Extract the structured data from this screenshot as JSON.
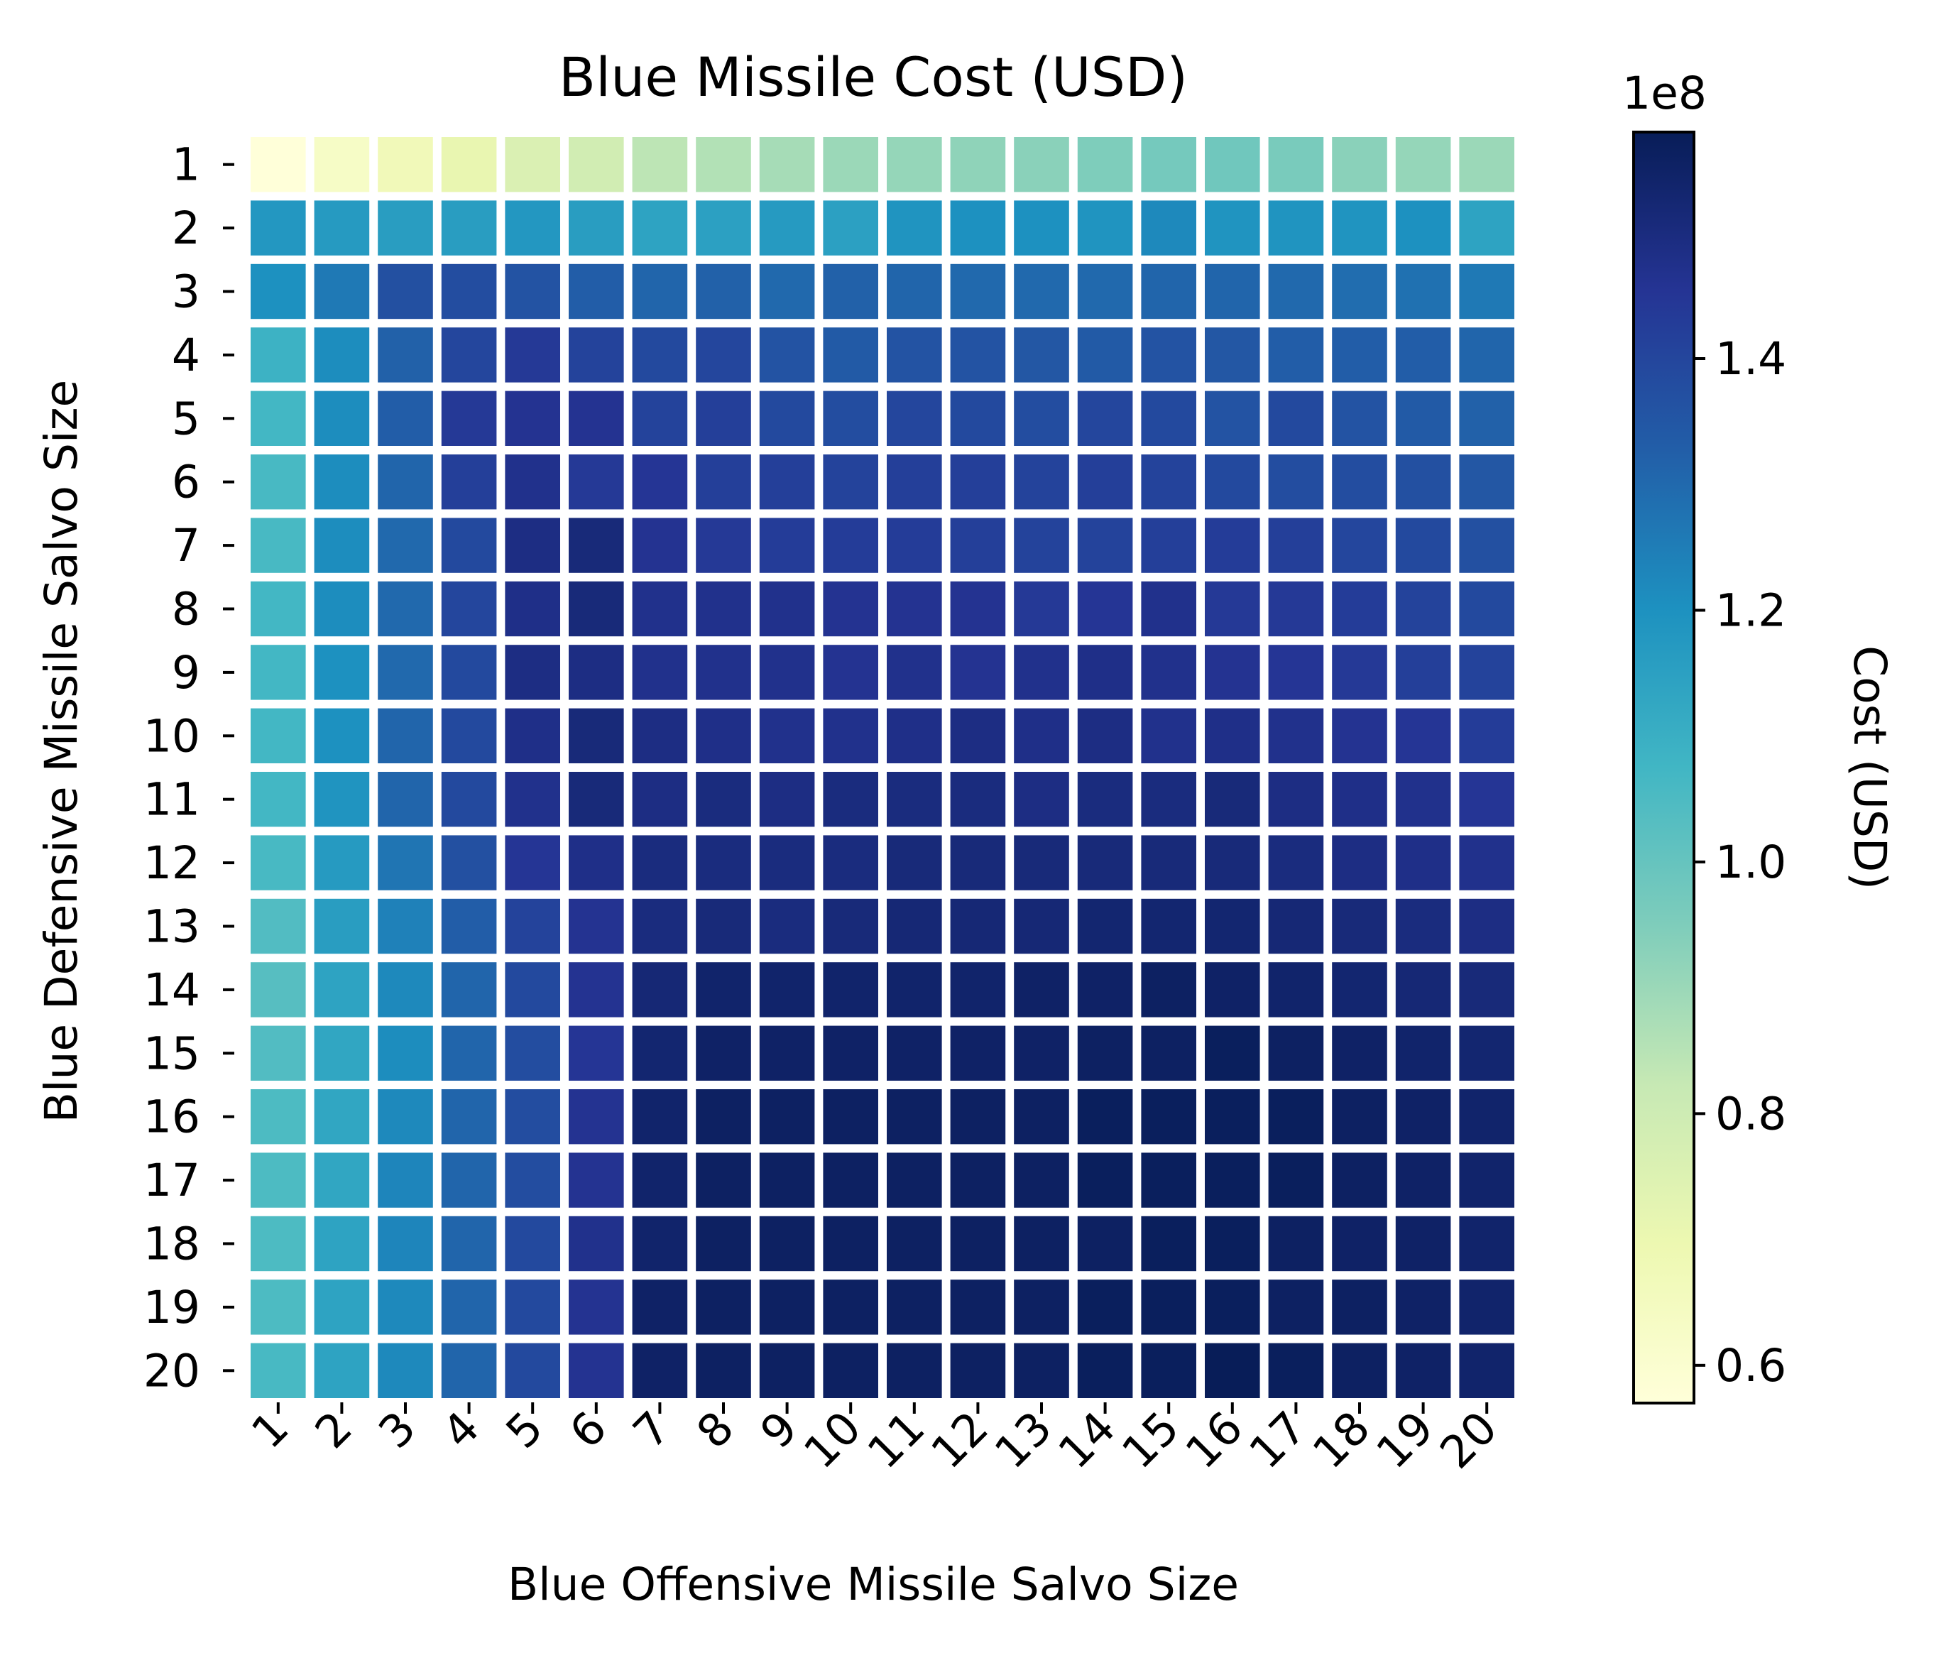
{
  "chart_data": {
    "type": "heatmap",
    "title": "Blue Missile Cost (USD)",
    "xlabel": "Blue Offensive Missile Salvo Size",
    "ylabel": "Blue Defensive Missile Salvo Size",
    "x_categories": [
      "1",
      "2",
      "3",
      "4",
      "5",
      "6",
      "7",
      "8",
      "9",
      "10",
      "11",
      "12",
      "13",
      "14",
      "15",
      "16",
      "17",
      "18",
      "19",
      "20"
    ],
    "y_categories": [
      "1",
      "2",
      "3",
      "4",
      "5",
      "6",
      "7",
      "8",
      "9",
      "10",
      "11",
      "12",
      "13",
      "14",
      "15",
      "16",
      "17",
      "18",
      "19",
      "20"
    ],
    "colorbar": {
      "label": "Cost (USD)",
      "offset_label": "1e8",
      "vmin": 0.57,
      "vmax": 1.58,
      "ticks": [
        "0.6",
        "0.8",
        "1.0",
        "1.2",
        "1.4"
      ],
      "tick_values": [
        0.6,
        0.8,
        1.0,
        1.2,
        1.4
      ],
      "colormap": "YlGnBu"
    },
    "values_units": "1e8 USD",
    "values": [
      [
        0.57,
        0.63,
        0.67,
        0.71,
        0.76,
        0.79,
        0.84,
        0.86,
        0.88,
        0.9,
        0.91,
        0.92,
        0.93,
        0.95,
        0.97,
        0.98,
        0.96,
        0.93,
        0.91,
        0.9
      ],
      [
        1.18,
        1.17,
        1.16,
        1.16,
        1.18,
        1.16,
        1.14,
        1.15,
        1.17,
        1.15,
        1.19,
        1.2,
        1.2,
        1.19,
        1.22,
        1.19,
        1.19,
        1.19,
        1.2,
        1.14
      ],
      [
        1.2,
        1.26,
        1.37,
        1.38,
        1.36,
        1.33,
        1.31,
        1.32,
        1.3,
        1.32,
        1.31,
        1.3,
        1.3,
        1.3,
        1.31,
        1.31,
        1.3,
        1.29,
        1.28,
        1.26
      ],
      [
        1.09,
        1.21,
        1.32,
        1.4,
        1.44,
        1.41,
        1.39,
        1.4,
        1.36,
        1.34,
        1.36,
        1.36,
        1.35,
        1.34,
        1.36,
        1.35,
        1.33,
        1.33,
        1.33,
        1.31
      ],
      [
        1.07,
        1.21,
        1.33,
        1.44,
        1.46,
        1.46,
        1.41,
        1.42,
        1.39,
        1.38,
        1.4,
        1.39,
        1.38,
        1.4,
        1.39,
        1.36,
        1.39,
        1.36,
        1.34,
        1.32
      ],
      [
        1.06,
        1.21,
        1.31,
        1.42,
        1.47,
        1.44,
        1.45,
        1.42,
        1.42,
        1.41,
        1.42,
        1.42,
        1.41,
        1.42,
        1.41,
        1.39,
        1.38,
        1.38,
        1.37,
        1.35
      ],
      [
        1.06,
        1.21,
        1.3,
        1.39,
        1.49,
        1.51,
        1.46,
        1.44,
        1.43,
        1.43,
        1.43,
        1.42,
        1.41,
        1.41,
        1.42,
        1.43,
        1.42,
        1.4,
        1.39,
        1.37
      ],
      [
        1.07,
        1.21,
        1.3,
        1.4,
        1.48,
        1.51,
        1.47,
        1.47,
        1.47,
        1.46,
        1.46,
        1.46,
        1.44,
        1.45,
        1.47,
        1.44,
        1.44,
        1.43,
        1.41,
        1.39
      ],
      [
        1.07,
        1.2,
        1.3,
        1.39,
        1.49,
        1.49,
        1.47,
        1.47,
        1.47,
        1.46,
        1.47,
        1.46,
        1.47,
        1.48,
        1.47,
        1.46,
        1.45,
        1.44,
        1.42,
        1.41
      ],
      [
        1.07,
        1.2,
        1.31,
        1.39,
        1.48,
        1.51,
        1.49,
        1.48,
        1.47,
        1.47,
        1.48,
        1.49,
        1.48,
        1.49,
        1.47,
        1.48,
        1.47,
        1.46,
        1.45,
        1.43
      ],
      [
        1.07,
        1.19,
        1.31,
        1.39,
        1.47,
        1.51,
        1.49,
        1.5,
        1.49,
        1.5,
        1.5,
        1.5,
        1.49,
        1.5,
        1.5,
        1.51,
        1.49,
        1.48,
        1.47,
        1.45
      ],
      [
        1.06,
        1.17,
        1.27,
        1.37,
        1.45,
        1.48,
        1.5,
        1.5,
        1.5,
        1.5,
        1.51,
        1.51,
        1.51,
        1.51,
        1.51,
        1.51,
        1.5,
        1.49,
        1.48,
        1.47
      ],
      [
        1.04,
        1.16,
        1.24,
        1.33,
        1.41,
        1.46,
        1.5,
        1.51,
        1.5,
        1.51,
        1.52,
        1.52,
        1.52,
        1.53,
        1.53,
        1.53,
        1.52,
        1.51,
        1.5,
        1.49
      ],
      [
        1.03,
        1.14,
        1.22,
        1.31,
        1.39,
        1.46,
        1.52,
        1.54,
        1.54,
        1.54,
        1.54,
        1.54,
        1.55,
        1.55,
        1.56,
        1.55,
        1.54,
        1.53,
        1.52,
        1.51
      ],
      [
        1.04,
        1.13,
        1.21,
        1.31,
        1.38,
        1.45,
        1.53,
        1.55,
        1.55,
        1.55,
        1.55,
        1.55,
        1.55,
        1.56,
        1.56,
        1.57,
        1.56,
        1.55,
        1.54,
        1.53
      ],
      [
        1.05,
        1.13,
        1.22,
        1.31,
        1.38,
        1.46,
        1.54,
        1.56,
        1.56,
        1.56,
        1.56,
        1.56,
        1.56,
        1.57,
        1.57,
        1.57,
        1.57,
        1.56,
        1.55,
        1.54
      ],
      [
        1.05,
        1.13,
        1.23,
        1.31,
        1.38,
        1.46,
        1.54,
        1.56,
        1.56,
        1.56,
        1.56,
        1.56,
        1.56,
        1.57,
        1.57,
        1.57,
        1.57,
        1.56,
        1.55,
        1.54
      ],
      [
        1.05,
        1.14,
        1.23,
        1.31,
        1.39,
        1.47,
        1.54,
        1.56,
        1.56,
        1.56,
        1.56,
        1.56,
        1.56,
        1.56,
        1.57,
        1.57,
        1.56,
        1.55,
        1.55,
        1.54
      ],
      [
        1.05,
        1.14,
        1.22,
        1.31,
        1.39,
        1.46,
        1.55,
        1.56,
        1.56,
        1.56,
        1.56,
        1.56,
        1.56,
        1.57,
        1.57,
        1.57,
        1.56,
        1.56,
        1.55,
        1.54
      ],
      [
        1.06,
        1.14,
        1.22,
        1.31,
        1.39,
        1.46,
        1.55,
        1.56,
        1.56,
        1.56,
        1.56,
        1.56,
        1.56,
        1.57,
        1.57,
        1.58,
        1.57,
        1.56,
        1.55,
        1.54
      ]
    ]
  }
}
